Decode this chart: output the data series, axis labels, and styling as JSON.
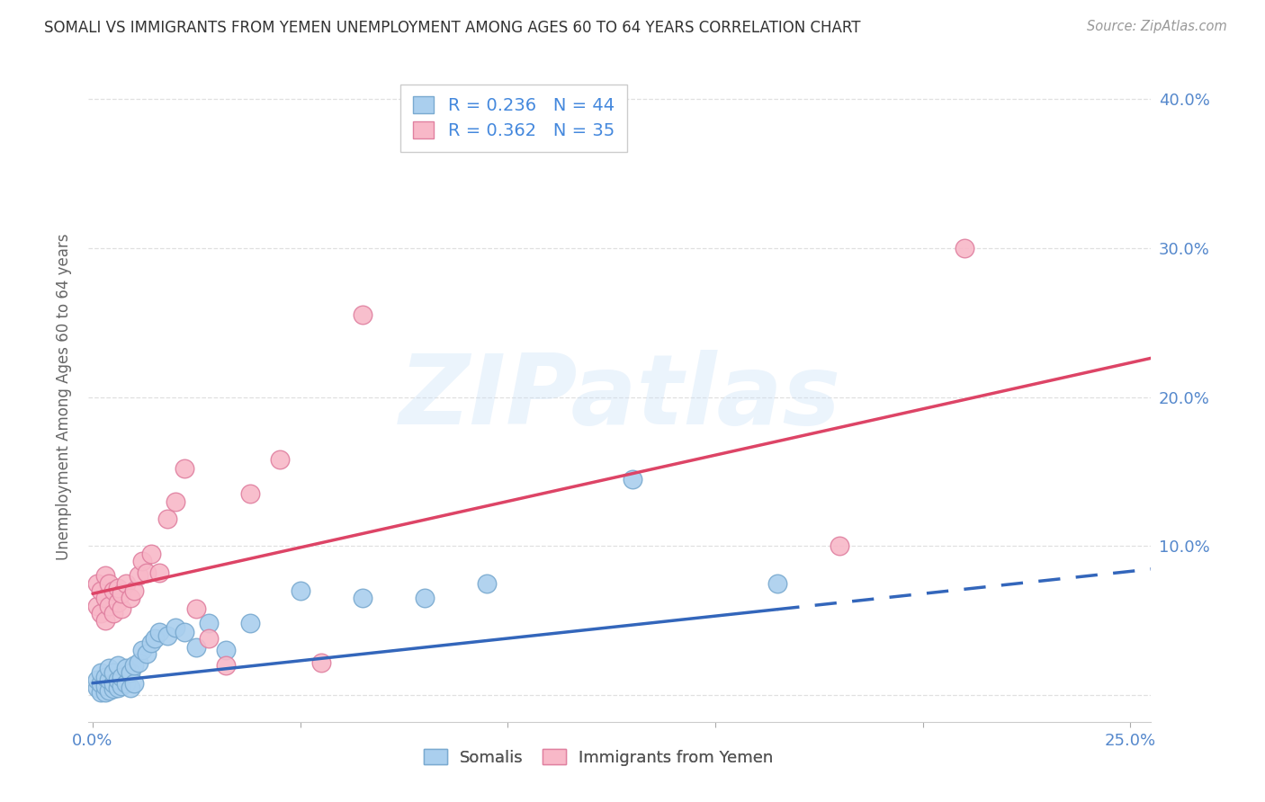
{
  "title": "SOMALI VS IMMIGRANTS FROM YEMEN UNEMPLOYMENT AMONG AGES 60 TO 64 YEARS CORRELATION CHART",
  "source": "Source: ZipAtlas.com",
  "ylabel": "Unemployment Among Ages 60 to 64 years",
  "xlim": [
    -0.001,
    0.255
  ],
  "ylim": [
    -0.018,
    0.418
  ],
  "xtick_positions": [
    0.0,
    0.05,
    0.1,
    0.15,
    0.2,
    0.25
  ],
  "xtick_labels": [
    "0.0%",
    "",
    "",
    "",
    "",
    "25.0%"
  ],
  "ytick_positions": [
    0.0,
    0.1,
    0.2,
    0.3,
    0.4
  ],
  "ytick_labels_left": [
    "",
    "",
    "",
    "",
    ""
  ],
  "ytick_labels_right": [
    "",
    "10.0%",
    "20.0%",
    "30.0%",
    "40.0%"
  ],
  "somali_x": [
    0.001,
    0.001,
    0.002,
    0.002,
    0.002,
    0.003,
    0.003,
    0.003,
    0.004,
    0.004,
    0.004,
    0.005,
    0.005,
    0.005,
    0.006,
    0.006,
    0.006,
    0.007,
    0.007,
    0.008,
    0.008,
    0.009,
    0.009,
    0.01,
    0.01,
    0.011,
    0.012,
    0.013,
    0.014,
    0.015,
    0.016,
    0.018,
    0.02,
    0.022,
    0.025,
    0.028,
    0.032,
    0.038,
    0.05,
    0.065,
    0.08,
    0.095,
    0.13,
    0.165
  ],
  "somali_y": [
    0.005,
    0.01,
    0.002,
    0.008,
    0.015,
    0.002,
    0.006,
    0.012,
    0.003,
    0.01,
    0.018,
    0.004,
    0.008,
    0.015,
    0.005,
    0.01,
    0.02,
    0.006,
    0.012,
    0.008,
    0.018,
    0.005,
    0.015,
    0.008,
    0.02,
    0.022,
    0.03,
    0.028,
    0.035,
    0.038,
    0.042,
    0.04,
    0.045,
    0.042,
    0.032,
    0.048,
    0.03,
    0.048,
    0.07,
    0.065,
    0.065,
    0.075,
    0.145,
    0.075
  ],
  "yemen_x": [
    0.001,
    0.001,
    0.002,
    0.002,
    0.003,
    0.003,
    0.003,
    0.004,
    0.004,
    0.005,
    0.005,
    0.006,
    0.006,
    0.007,
    0.007,
    0.008,
    0.009,
    0.01,
    0.011,
    0.012,
    0.013,
    0.014,
    0.016,
    0.018,
    0.02,
    0.022,
    0.025,
    0.028,
    0.032,
    0.038,
    0.045,
    0.055,
    0.065,
    0.18,
    0.21
  ],
  "yemen_y": [
    0.06,
    0.075,
    0.055,
    0.07,
    0.05,
    0.065,
    0.08,
    0.06,
    0.075,
    0.055,
    0.07,
    0.062,
    0.072,
    0.058,
    0.068,
    0.075,
    0.065,
    0.07,
    0.08,
    0.09,
    0.082,
    0.095,
    0.082,
    0.118,
    0.13,
    0.152,
    0.058,
    0.038,
    0.02,
    0.135,
    0.158,
    0.022,
    0.255,
    0.1,
    0.3
  ],
  "somali_color": "#aacfee",
  "somali_edge_color": "#7aaad0",
  "yemen_color": "#f8b8c8",
  "yemen_edge_color": "#e080a0",
  "somali_line_color": "#3366bb",
  "somali_line_intercept": 0.008,
  "somali_line_slope": 0.3,
  "yemen_line_color": "#dd4466",
  "yemen_line_intercept": 0.068,
  "yemen_line_slope": 0.62,
  "axis_label_color": "#5588cc",
  "title_color": "#333333",
  "source_color": "#999999",
  "ylabel_color": "#666666",
  "grid_color": "#e0e0e0",
  "watermark_text": "ZIPatlas",
  "background_color": "#ffffff",
  "legend_color": "#4488dd"
}
